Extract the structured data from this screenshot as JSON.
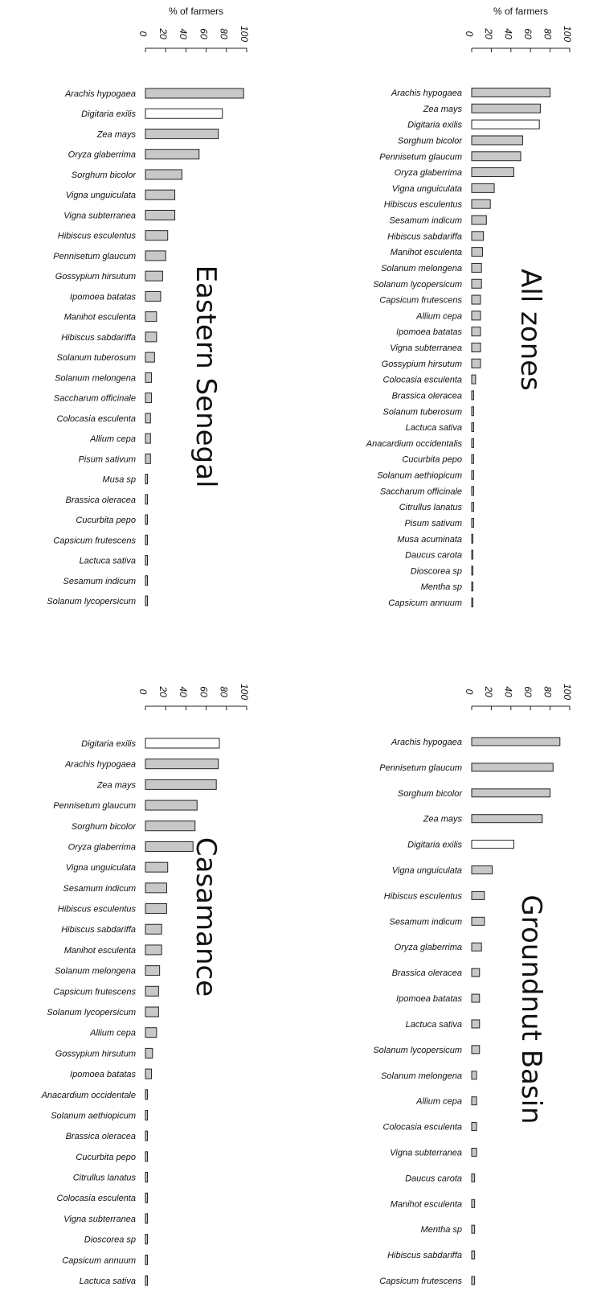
{
  "chart_data": [
    {
      "type": "bar",
      "orientation": "horizontal",
      "title": "Eastern Senegal",
      "xlabel": "% of farmers",
      "xlim": [
        0,
        100
      ],
      "ticks": [
        "0",
        "20",
        "40",
        "60",
        "80",
        "100"
      ],
      "highlight_color": "#ffffff",
      "bar_color": "#c8c8c8",
      "categories": [
        "Arachis hypogaea",
        "Digitaria exilis",
        "Zea mays",
        "Oryza glaberrima",
        "Sorghum bicolor",
        "Vigna unguiculata",
        "Vigna subterranea",
        "Hibiscus esculentus",
        "Pennisetum glaucum",
        "Gossypium hirsutum",
        "Ipomoea batatas",
        "Manihot esculenta",
        "Hibiscus sabdariffa",
        "Solanum tuberosum",
        "Solanum melongena",
        "Saccharum officinale",
        "Colocasia esculenta",
        "Allium cepa",
        "Pisum sativum",
        "Musa sp",
        "Brassica oleracea",
        "Cucurbita pepo",
        "Capsicum frutescens",
        "Lactuca sativa",
        "Sesamum indicum",
        "Solanum lycopersicum"
      ],
      "values": [
        97,
        76,
        72,
        53,
        36,
        29,
        29,
        22,
        20,
        17,
        15,
        11,
        11,
        9,
        6,
        6,
        5,
        5,
        5,
        2,
        2,
        2,
        2,
        2,
        2,
        2
      ],
      "highlighted": [
        "Digitaria exilis"
      ]
    },
    {
      "type": "bar",
      "orientation": "horizontal",
      "title": "All zones",
      "xlabel": "% of farmers",
      "xlim": [
        0,
        100
      ],
      "ticks": [
        "0",
        "20",
        "40",
        "60",
        "80",
        "100"
      ],
      "highlight_color": "#ffffff",
      "bar_color": "#c8c8c8",
      "categories": [
        "Arachis hypogaea",
        "Zea mays",
        "Digitaria exilis",
        "Sorghum bicolor",
        "Pennisetum glaucum",
        "Oryza glaberrima",
        "Vigna unguiculata",
        "Hibiscus esculentus",
        "Sesamum indicum",
        "Hibiscus sabdariffa",
        "Manihot esculenta",
        "Solanum melongena",
        "Solanum lycopersicum",
        "Capsicum frutescens",
        "Allium cepa",
        "Ipomoea batatas",
        "Vigna subterranea",
        "Gossypium hirsutum",
        "Colocasia esculenta",
        "Brassica oleracea",
        "Solanum tuberosum",
        "Lactuca sativa",
        "Anacardium occidentalis",
        "Cucurbita pepo",
        "Solanum aethiopicum",
        "Saccharum officinale",
        "Citrullus lanatus",
        "Pisum sativum",
        "Musa acuminata",
        "Daucus carota",
        "Dioscorea sp",
        "Mentha sp",
        "Capsicum annuum"
      ],
      "values": [
        80,
        70,
        69,
        52,
        50,
        43,
        23,
        19,
        15,
        12,
        11,
        10,
        10,
        9,
        9,
        9,
        9,
        9,
        4,
        2,
        2,
        2,
        2,
        2,
        2,
        2,
        2,
        2,
        1,
        1,
        1,
        1,
        1
      ],
      "highlighted": [
        "Digitaria exilis"
      ]
    },
    {
      "type": "bar",
      "orientation": "horizontal",
      "title": "Casamance",
      "xlabel": "",
      "xlim": [
        0,
        100
      ],
      "ticks": [
        "0",
        "20",
        "40",
        "60",
        "80",
        "100"
      ],
      "highlight_color": "#ffffff",
      "bar_color": "#c8c8c8",
      "categories": [
        "Digitaria exilis",
        "Arachis hypogaea",
        "Zea mays",
        "Pennisetum glaucum",
        "Sorghum bicolor",
        "Oryza glaberrima",
        "Vigna unguiculata",
        "Sesamum indicum",
        "Hibiscus esculentus",
        "Hibiscus sabdariffa",
        "Manihot esculenta",
        "Solanum melongena",
        "Capsicum frutescens",
        "Solanum lycopersicum",
        "Allium cepa",
        "Gossypium hirsutum",
        "Ipomoea batatas",
        "Anacardium occidentale",
        "Solanum aethiopicum",
        "Brassica oleracea",
        "Cucurbita pepo",
        "Citrullus lanatus",
        "Colocasia esculenta",
        "Vigna subterranea",
        "Dioscorea sp",
        "Capsicum annuum",
        "Lactuca sativa"
      ],
      "values": [
        73,
        72,
        70,
        51,
        49,
        47,
        22,
        21,
        21,
        16,
        16,
        14,
        13,
        13,
        11,
        7,
        6,
        2,
        2,
        2,
        2,
        2,
        2,
        2,
        2,
        2,
        2
      ],
      "highlighted": [
        "Digitaria exilis"
      ]
    },
    {
      "type": "bar",
      "orientation": "horizontal",
      "title": "Groundnut Basin",
      "xlabel": "",
      "xlim": [
        0,
        100
      ],
      "ticks": [
        "0",
        "20",
        "40",
        "60",
        "80",
        "100"
      ],
      "highlight_color": "#ffffff",
      "bar_color": "#c8c8c8",
      "categories": [
        "Arachis hypogaea",
        "Pennisetum glaucum",
        "Sorghum bicolor",
        "Zea mays",
        "Digitaria exilis",
        "Vigna unguiculata",
        "Hibiscus esculentus",
        "Sesamum indicum",
        "Oryza glaberrima",
        "Brassica oleracea",
        "Ipomoea batatas",
        "Lactuca sativa",
        "Solanum lycopersicum",
        "Solanum melongena",
        "Allium cepa",
        "Colocasia esculenta",
        "Vigna subterranea",
        "Daucus carota",
        "Manihot esculenta",
        "Mentha sp",
        "Hibiscus sabdariffa",
        "Capsicum frutescens"
      ],
      "values": [
        90,
        83,
        80,
        72,
        43,
        21,
        13,
        13,
        10,
        8,
        8,
        8,
        8,
        5,
        5,
        5,
        5,
        3,
        3,
        3,
        3,
        3
      ],
      "highlighted": [
        "Digitaria exilis"
      ]
    }
  ]
}
